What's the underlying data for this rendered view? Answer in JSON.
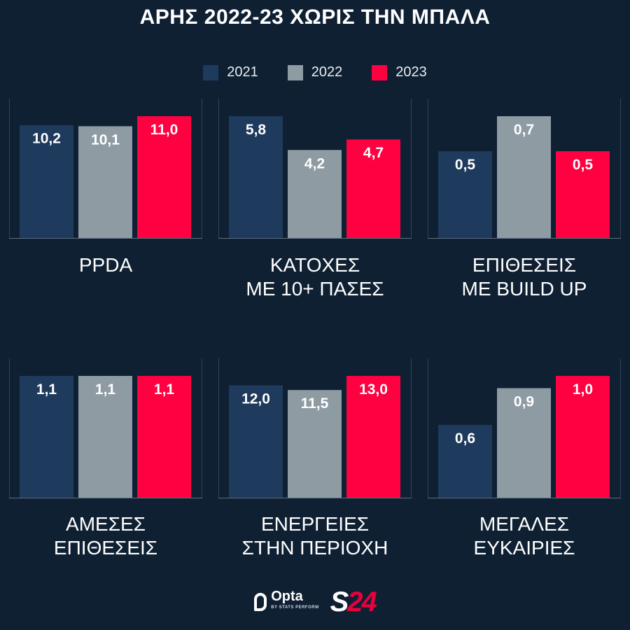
{
  "title": "ΑΡΗΣ 2022-23 ΧΩΡΙΣ ΤΗΝ ΜΠΑΛΑ",
  "legend": [
    {
      "label": "2021",
      "color": "#1e3a5c"
    },
    {
      "label": "2022",
      "color": "#8e9ba3"
    },
    {
      "label": "2023",
      "color": "#ff0040"
    }
  ],
  "footer": {
    "opta": "Opta",
    "opta_sub": "BY STATS PERFORM",
    "brand_s": "S",
    "brand_num": "24"
  },
  "chart_data": [
    {
      "type": "bar",
      "label_lines": [
        "PPDA"
      ],
      "categories": [
        "2021",
        "2022",
        "2023"
      ],
      "values": [
        10.2,
        10.1,
        11.0
      ],
      "value_labels": [
        "10,2",
        "10,1",
        "11,0"
      ],
      "ylim": [
        0,
        11.0
      ]
    },
    {
      "type": "bar",
      "label_lines": [
        "ΚΑΤΟΧΕΣ",
        "ΜΕ 10+ ΠΑΣΕΣ"
      ],
      "categories": [
        "2021",
        "2022",
        "2023"
      ],
      "values": [
        5.8,
        4.2,
        4.7
      ],
      "value_labels": [
        "5,8",
        "4,2",
        "4,7"
      ],
      "ylim": [
        0,
        5.8
      ]
    },
    {
      "type": "bar",
      "label_lines": [
        "ΕΠΙΘΕΣΕΙΣ",
        "ΜΕ BUILD UP"
      ],
      "categories": [
        "2021",
        "2022",
        "2023"
      ],
      "values": [
        0.5,
        0.7,
        0.5
      ],
      "value_labels": [
        "0,5",
        "0,7",
        "0,5"
      ],
      "ylim": [
        0,
        0.7
      ]
    },
    {
      "type": "bar",
      "label_lines": [
        "ΑΜΕΣΕΣ",
        "ΕΠΙΘΕΣΕΙΣ"
      ],
      "categories": [
        "2021",
        "2022",
        "2023"
      ],
      "values": [
        1.1,
        1.1,
        1.1
      ],
      "value_labels": [
        "1,1",
        "1,1",
        "1,1"
      ],
      "ylim": [
        0,
        1.1
      ]
    },
    {
      "type": "bar",
      "label_lines": [
        "ΕΝΕΡΓΕΙΕΣ",
        "ΣΤΗΝ ΠΕΡΙΟΧΗ"
      ],
      "categories": [
        "2021",
        "2022",
        "2023"
      ],
      "values": [
        12.0,
        11.5,
        13.0
      ],
      "value_labels": [
        "12,0",
        "11,5",
        "13,0"
      ],
      "ylim": [
        0,
        13.0
      ]
    },
    {
      "type": "bar",
      "label_lines": [
        "ΜΕΓΑΛΕΣ",
        "ΕΥΚΑΙΡΙΕΣ"
      ],
      "categories": [
        "2021",
        "2022",
        "2023"
      ],
      "values": [
        0.6,
        0.9,
        1.0
      ],
      "value_labels": [
        "0,6",
        "0,9",
        "1,0"
      ],
      "ylim": [
        0,
        1.0
      ]
    }
  ]
}
